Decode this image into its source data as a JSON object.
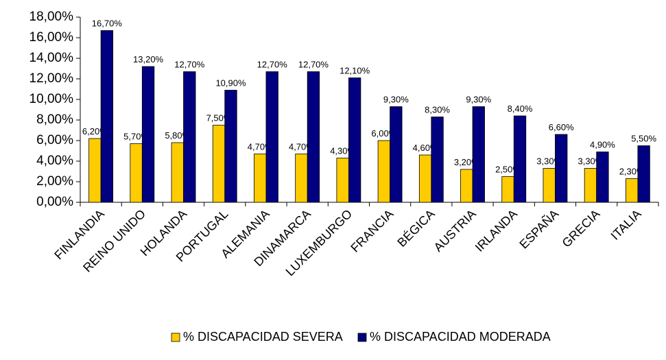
{
  "chart_data": {
    "type": "bar",
    "categories": [
      "FINLANDIA",
      "REINO UNIDO",
      "HOLANDA",
      "PORTUGAL",
      "ALEMANIA",
      "DINAMARCA",
      "LUXEMBURGO",
      "FRANCIA",
      "BÉGICA",
      "AUSTRIA",
      "IRLANDA",
      "ESPAÑA",
      "GRECIA",
      "ITALIA"
    ],
    "series": [
      {
        "name": "% DISCAPACIDAD SEVERA",
        "color": "#FFCC00",
        "values": [
          6.2,
          5.7,
          5.8,
          7.5,
          4.7,
          4.7,
          4.3,
          6.0,
          4.6,
          3.2,
          2.5,
          3.3,
          3.3,
          2.3
        ],
        "value_labels": [
          "6,20%",
          "5,70%",
          "5,80%",
          "7,50%",
          "4,70%",
          "4,70%",
          "4,30%",
          "6,00%",
          "4,60%",
          "3,20%",
          "2,50%",
          "3,30%",
          "3,30%",
          "2,30%"
        ]
      },
      {
        "name": "% DISCAPACIDAD MODERADA",
        "color": "#000080",
        "values": [
          16.7,
          13.2,
          12.7,
          10.9,
          12.7,
          12.7,
          12.1,
          9.3,
          8.3,
          9.3,
          8.4,
          6.6,
          4.9,
          5.5
        ],
        "value_labels": [
          "16,70%",
          "13,20%",
          "12,70%",
          "10,90%",
          "12,70%",
          "12,70%",
          "12,10%",
          "9,30%",
          "8,30%",
          "9,30%",
          "8,40%",
          "6,60%",
          "4,90%",
          "5,50%"
        ]
      }
    ],
    "ylim": [
      0,
      18
    ],
    "yticks": [
      {
        "value": 0,
        "label": "0,00%"
      },
      {
        "value": 2,
        "label": "2,00%"
      },
      {
        "value": 4,
        "label": "4,00%"
      },
      {
        "value": 6,
        "label": "6,00%"
      },
      {
        "value": 8,
        "label": "8,00%"
      },
      {
        "value": 10,
        "label": "10,00%"
      },
      {
        "value": 12,
        "label": "12,00%"
      },
      {
        "value": 14,
        "label": "14,00%"
      },
      {
        "value": 16,
        "label": "16,00%"
      },
      {
        "value": 18,
        "label": "18,00%"
      }
    ],
    "grid": false,
    "legend": "bottom"
  }
}
